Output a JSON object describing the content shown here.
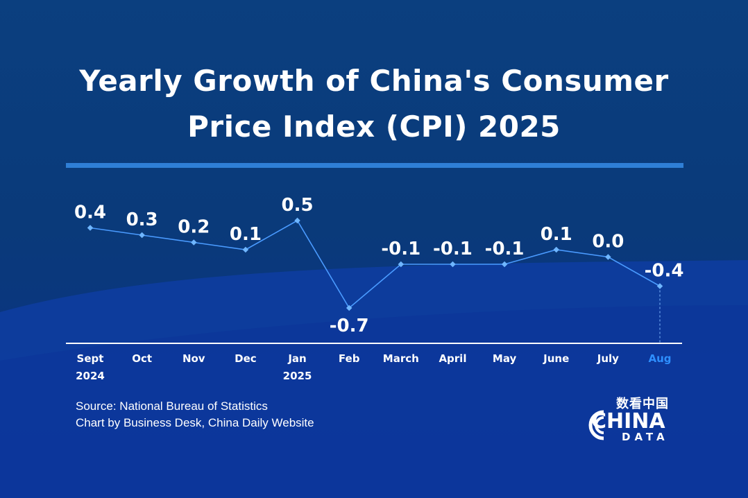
{
  "title_line1": "Yearly Growth of China's Consumer",
  "title_line2": "Price Index (CPI) 2025",
  "chart_data": {
    "type": "line",
    "categories": [
      "Sept 2024",
      "Oct",
      "Nov",
      "Dec",
      "Jan 2025",
      "Feb",
      "March",
      "April",
      "May",
      "June",
      "July",
      "Aug"
    ],
    "x_labels": [
      [
        "Sept",
        "2024"
      ],
      [
        "Oct"
      ],
      [
        "Nov"
      ],
      [
        "Dec"
      ],
      [
        "Jan",
        "2025"
      ],
      [
        "Feb"
      ],
      [
        "March"
      ],
      [
        "April"
      ],
      [
        "May"
      ],
      [
        "June"
      ],
      [
        "July"
      ],
      [
        "Aug"
      ]
    ],
    "values": [
      0.4,
      0.3,
      0.2,
      0.1,
      0.5,
      -0.7,
      -0.1,
      -0.1,
      -0.1,
      0.1,
      0.0,
      -0.4
    ],
    "value_labels": [
      "0.4",
      "0.3",
      "0.2",
      "0.1",
      "0.5",
      "-0.7",
      "-0.1",
      "-0.1",
      "-0.1",
      "0.1",
      "0.0",
      "-0.4"
    ],
    "highlight_index": 11,
    "colors": {
      "line": "#4a9bff",
      "marker": "#6fb6ff",
      "label": "#ffffff",
      "axis": "#ffffff",
      "highlight": "#2e8fff"
    }
  },
  "source_line1": "Source: National Bureau of Statistics",
  "source_line2": "Chart by Business Desk, China Daily Website",
  "logo": {
    "chinese": "数看中国",
    "name": "CHINA",
    "sub": "DATA"
  }
}
